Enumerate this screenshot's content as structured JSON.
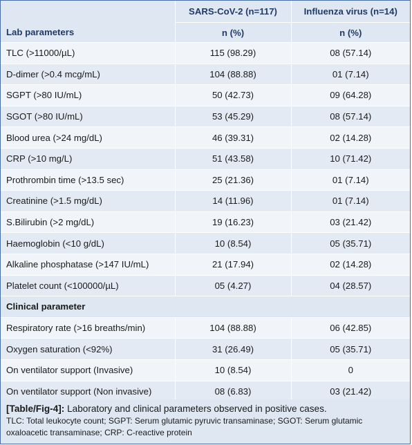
{
  "headers": {
    "col1": "Lab parameters",
    "col2": "SARS-CoV-2 (n=117)",
    "col3": "Influenza virus (n=14)",
    "unit2": "n (%)",
    "unit3": "n (%)"
  },
  "lab_rows": [
    {
      "param": "TLC (>11000/µL)",
      "sars": "115 (98.29)",
      "flu": "08 (57.14)"
    },
    {
      "param": "D-dimer (>0.4 mcg/mL)",
      "sars": "104 (88.88)",
      "flu": "01 (7.14)"
    },
    {
      "param": "SGPT (>80 IU/mL)",
      "sars": "50 (42.73)",
      "flu": "09 (64.28)"
    },
    {
      "param": "SGOT (>80 IU/mL)",
      "sars": "53 (45.29)",
      "flu": "08 (57.14)"
    },
    {
      "param": "Blood urea (>24 mg/dL)",
      "sars": "46 (39.31)",
      "flu": "02 (14.28)"
    },
    {
      "param": "CRP (>10 mg/L)",
      "sars": "51 (43.58)",
      "flu": "10 (71.42)"
    },
    {
      "param": "Prothrombin time (>13.5 sec)",
      "sars": "25 (21.36)",
      "flu": "01 (7.14)"
    },
    {
      "param": "Creatinine (>1.5 mg/dL)",
      "sars": "14 (11.96)",
      "flu": "01 (7.14)"
    },
    {
      "param": "S.Bilirubin (>2 mg/dL)",
      "sars": "19 (16.23)",
      "flu": "03 (21.42)"
    },
    {
      "param": "Haemoglobin (<10 g/dL)",
      "sars": "10 (8.54)",
      "flu": "05 (35.71)"
    },
    {
      "param": "Alkaline phosphatase (>147 IU/mL)",
      "sars": "21 (17.94)",
      "flu": "02 (14.28)"
    },
    {
      "param": "Platelet count (<100000/µL)",
      "sars": "05 (4.27)",
      "flu": "04 (28.57)"
    }
  ],
  "section_label": "Clinical parameter",
  "clinical_rows": [
    {
      "param": "Respiratory rate (>16 breaths/min)",
      "sars": "104 (88.88)",
      "flu": "06 (42.85)"
    },
    {
      "param": "Oxygen saturation (<92%)",
      "sars": "31 (26.49)",
      "flu": "05 (35.71)"
    },
    {
      "param": "On ventilator support (Invasive)",
      "sars": "10 (8.54)",
      "flu": "0"
    },
    {
      "param": "On ventilator support (Non invasive)",
      "sars": "08 (6.83)",
      "flu": "03 (21.42)"
    }
  ],
  "caption": {
    "label": "[Table/Fig-4]:",
    "title": " Laboratory and clinical parameters observed in positive cases.",
    "note": "TLC: Total leukocyte count; SGPT: Serum glutamic pyruvic transaminase; SGOT: Serum glutamic oxaloacetic transaminase; CRP: C-reactive protein"
  }
}
